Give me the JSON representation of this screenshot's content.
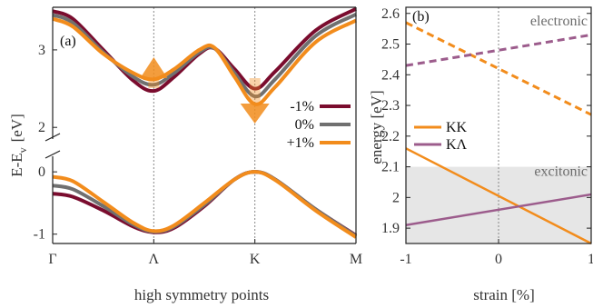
{
  "chart_data": [
    {
      "panel": "(a)",
      "type": "line",
      "xlabel": "high symmetry points",
      "ylabel_main": "E-E",
      "ylabel_sub": "v",
      "ylabel_unit": "[eV]",
      "x_ticks": [
        "Γ",
        "Λ",
        "K",
        "M"
      ],
      "x_tick_positions": [
        0,
        1,
        2,
        3
      ],
      "y_ticks_upper": [
        "3",
        "2"
      ],
      "y_ticks_lower": [
        "0",
        "-1"
      ],
      "broken_axis": true,
      "upper_range": [
        1.85,
        3.55
      ],
      "lower_range": [
        -1.15,
        0.25
      ],
      "vertical_guides": [
        1,
        2
      ],
      "legend": [
        "-1%",
        "0%",
        "+1%"
      ],
      "legend_position": "right",
      "arrows": [
        {
          "x": 1,
          "direction": "up",
          "color": "#f28c1c"
        },
        {
          "x": 2,
          "direction": "down",
          "color": "#f28c1c"
        }
      ],
      "series": [
        {
          "name": "-1%",
          "color": "#7a0c2e",
          "conduction": [
            [
              0,
              3.5
            ],
            [
              0.2,
              3.4
            ],
            [
              0.5,
              3.0
            ],
            [
              0.8,
              2.6
            ],
            [
              1.0,
              2.47
            ],
            [
              1.2,
              2.65
            ],
            [
              1.45,
              2.95
            ],
            [
              1.6,
              3.02
            ],
            [
              1.8,
              2.75
            ],
            [
              2.0,
              2.5
            ],
            [
              2.2,
              2.72
            ],
            [
              2.6,
              3.25
            ],
            [
              3.0,
              3.53
            ]
          ],
          "valence": [
            [
              0,
              -0.35
            ],
            [
              0.2,
              -0.4
            ],
            [
              0.5,
              -0.62
            ],
            [
              0.8,
              -0.88
            ],
            [
              1.0,
              -0.97
            ],
            [
              1.2,
              -0.9
            ],
            [
              1.5,
              -0.55
            ],
            [
              1.8,
              -0.12
            ],
            [
              2.0,
              0.0
            ],
            [
              2.2,
              -0.12
            ],
            [
              2.6,
              -0.6
            ],
            [
              3.0,
              -1.02
            ]
          ]
        },
        {
          "name": "0%",
          "color": "#707070",
          "conduction": [
            [
              0,
              3.45
            ],
            [
              0.2,
              3.35
            ],
            [
              0.5,
              2.97
            ],
            [
              0.8,
              2.65
            ],
            [
              1.0,
              2.55
            ],
            [
              1.2,
              2.7
            ],
            [
              1.45,
              2.97
            ],
            [
              1.6,
              3.02
            ],
            [
              1.8,
              2.7
            ],
            [
              2.0,
              2.4
            ],
            [
              2.2,
              2.62
            ],
            [
              2.6,
              3.18
            ],
            [
              3.0,
              3.46
            ]
          ],
          "valence": [
            [
              0,
              -0.22
            ],
            [
              0.2,
              -0.28
            ],
            [
              0.5,
              -0.55
            ],
            [
              0.8,
              -0.85
            ],
            [
              1.0,
              -0.96
            ],
            [
              1.2,
              -0.88
            ],
            [
              1.5,
              -0.53
            ],
            [
              1.8,
              -0.12
            ],
            [
              2.0,
              0.0
            ],
            [
              2.2,
              -0.12
            ],
            [
              2.6,
              -0.6
            ],
            [
              3.0,
              -1.03
            ]
          ]
        },
        {
          "name": "+1%",
          "color": "#f28c1c",
          "conduction": [
            [
              0,
              3.4
            ],
            [
              0.2,
              3.3
            ],
            [
              0.5,
              2.95
            ],
            [
              0.8,
              2.7
            ],
            [
              1.0,
              2.62
            ],
            [
              1.2,
              2.75
            ],
            [
              1.45,
              3.0
            ],
            [
              1.6,
              3.03
            ],
            [
              1.8,
              2.65
            ],
            [
              2.0,
              2.3
            ],
            [
              2.2,
              2.52
            ],
            [
              2.6,
              3.1
            ],
            [
              3.0,
              3.38
            ]
          ],
          "valence": [
            [
              0,
              -0.08
            ],
            [
              0.2,
              -0.15
            ],
            [
              0.5,
              -0.48
            ],
            [
              0.8,
              -0.82
            ],
            [
              1.0,
              -0.95
            ],
            [
              1.2,
              -0.86
            ],
            [
              1.5,
              -0.5
            ],
            [
              1.8,
              -0.12
            ],
            [
              2.0,
              0.0
            ],
            [
              2.2,
              -0.13
            ],
            [
              2.6,
              -0.62
            ],
            [
              3.0,
              -1.05
            ]
          ]
        }
      ]
    },
    {
      "panel": "(b)",
      "type": "line",
      "xlabel": "strain [%]",
      "ylabel": "energy [eV]",
      "xlim": [
        -1,
        1
      ],
      "ylim": [
        1.85,
        2.62
      ],
      "x_ticks": [
        "-1",
        "0",
        "1"
      ],
      "x_tick_values": [
        -1,
        0,
        1
      ],
      "y_ticks": [
        "2.6",
        "2.5",
        "2.4",
        "2.3",
        "2.2",
        "2.1",
        "2",
        "1.9"
      ],
      "y_tick_values": [
        2.6,
        2.5,
        2.4,
        2.3,
        2.2,
        2.1,
        2.0,
        1.9
      ],
      "shaded_region": {
        "y_from": 1.85,
        "y_to": 2.1,
        "color": "#e6e6e6"
      },
      "region_labels": [
        {
          "text": "electronic",
          "x": 0.55,
          "y": 2.575
        },
        {
          "text": "excitonic",
          "x": 0.55,
          "y": 2.085
        }
      ],
      "vertical_guides": [
        0
      ],
      "legend": [
        "KK",
        "KΛ"
      ],
      "legend_position": "left-middle",
      "series": [
        {
          "name": "KK",
          "color": "#f28c1c",
          "dashed": true,
          "points": [
            [
              -1,
              2.57
            ],
            [
              1,
              2.27
            ]
          ]
        },
        {
          "name": "KΛ",
          "color": "#9c5c8c",
          "dashed": true,
          "points": [
            [
              -1,
              2.43
            ],
            [
              1,
              2.53
            ]
          ]
        },
        {
          "name": "KK",
          "color": "#f28c1c",
          "dashed": false,
          "points": [
            [
              -1,
              2.16
            ],
            [
              1,
              1.85
            ]
          ]
        },
        {
          "name": "KΛ",
          "color": "#9c5c8c",
          "dashed": false,
          "points": [
            [
              -1,
              1.91
            ],
            [
              1,
              2.01
            ]
          ]
        }
      ]
    }
  ]
}
